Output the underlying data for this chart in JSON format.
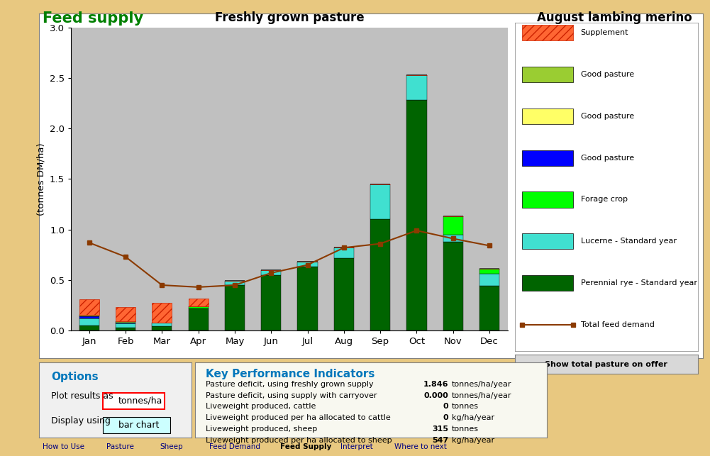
{
  "title": "Freshly grown pasture",
  "ylabel": "(tonnes DM/ha)",
  "months": [
    "Jan",
    "Feb",
    "Mar",
    "Apr",
    "May",
    "Jun",
    "Jul",
    "Aug",
    "Sep",
    "Oct",
    "Nov",
    "Dec"
  ],
  "ylim": [
    0,
    3.0
  ],
  "yticks": [
    0,
    0.5,
    1.0,
    1.5,
    2.0,
    2.5,
    3.0
  ],
  "bar_width": 0.55,
  "series_order": [
    "perennial_rye",
    "lucerne",
    "forage_crop",
    "good_pasture_blue",
    "good_pasture_yellow",
    "good_pasture_olive",
    "supplement"
  ],
  "series": {
    "perennial_rye": {
      "label": "Perennial rye - Standard year",
      "color": "#006400",
      "values": [
        0.05,
        0.03,
        0.04,
        0.22,
        0.45,
        0.55,
        0.63,
        0.72,
        1.1,
        2.28,
        0.88,
        0.44
      ]
    },
    "lucerne": {
      "label": "Lucerne - Standard year",
      "color": "#40E0D0",
      "values": [
        0.07,
        0.04,
        0.04,
        0.0,
        0.04,
        0.05,
        0.05,
        0.1,
        0.35,
        0.25,
        0.07,
        0.12
      ]
    },
    "forage_crop": {
      "label": "Forage crop",
      "color": "#00FF00",
      "values": [
        0.0,
        0.0,
        0.0,
        0.02,
        0.0,
        0.0,
        0.0,
        0.0,
        0.0,
        0.0,
        0.18,
        0.05
      ]
    },
    "good_pasture_blue": {
      "label": "Good pasture",
      "color": "#0000FF",
      "values": [
        0.02,
        0.01,
        0.0,
        0.0,
        0.0,
        0.0,
        0.0,
        0.0,
        0.0,
        0.0,
        0.0,
        0.0
      ]
    },
    "good_pasture_yellow": {
      "label": "Good pasture",
      "color": "#FFFF66",
      "values": [
        0.0,
        0.0,
        0.0,
        0.0,
        0.0,
        0.0,
        0.0,
        0.0,
        0.0,
        0.0,
        0.0,
        0.0
      ]
    },
    "good_pasture_olive": {
      "label": "Good pasture",
      "color": "#9ACD32",
      "values": [
        0.015,
        0.01,
        0.0,
        0.0,
        0.0,
        0.0,
        0.0,
        0.0,
        0.0,
        0.0,
        0.0,
        0.0
      ]
    },
    "supplement": {
      "label": "Supplement",
      "color": "#FF6633",
      "values": [
        0.155,
        0.145,
        0.195,
        0.075,
        0.0,
        0.0,
        0.0,
        0.0,
        0.0,
        0.0,
        0.0,
        0.0
      ]
    }
  },
  "demand_line": {
    "label": "Total feed demand",
    "color": "#8B3A00",
    "values": [
      0.87,
      0.73,
      0.45,
      0.43,
      0.45,
      0.57,
      0.65,
      0.82,
      0.86,
      0.99,
      0.91,
      0.84
    ]
  },
  "plot_bg": "#C0C0C0",
  "chart_panel_bg": "#FFFFFF",
  "outer_bg": "#E8C880",
  "legend_bg": "#FFFFFF",
  "header_title": "Feed supply",
  "header_title_color": "#008000",
  "header_right": "August lambing merino",
  "legend_items": [
    {
      "label": "Supplement",
      "color": "#FF6633",
      "type": "hatch"
    },
    {
      "label": "Good pasture",
      "color": "#9ACD32",
      "type": "rect"
    },
    {
      "label": "Good pasture",
      "color": "#FFFF66",
      "type": "rect"
    },
    {
      "label": "Good pasture",
      "color": "#0000FF",
      "type": "rect"
    },
    {
      "label": "Forage crop",
      "color": "#00FF00",
      "type": "rect"
    },
    {
      "label": "Lucerne - Standard year",
      "color": "#40E0D0",
      "type": "rect"
    },
    {
      "label": "Perennial rye - Standard year",
      "color": "#006400",
      "type": "rect"
    },
    {
      "label": "Total feed demand",
      "color": "#8B3A00",
      "type": "line"
    }
  ],
  "kpi_labels": [
    "Pasture deficit, using freshly grown supply",
    "Pasture deficit, using supply with carryover",
    "Liveweight produced, cattle",
    "Liveweight produced per ha allocated to cattle",
    "Liveweight produced, sheep",
    "Liveweight produced per ha allocated to sheep"
  ],
  "kpi_values": [
    "1.846",
    "0.000",
    "0",
    "0",
    "315",
    "547"
  ],
  "kpi_units": [
    "tonnes/ha/year",
    "tonnes/ha/year",
    "tonnes",
    "kg/ha/year",
    "tonnes",
    "kg/ha/year"
  ]
}
